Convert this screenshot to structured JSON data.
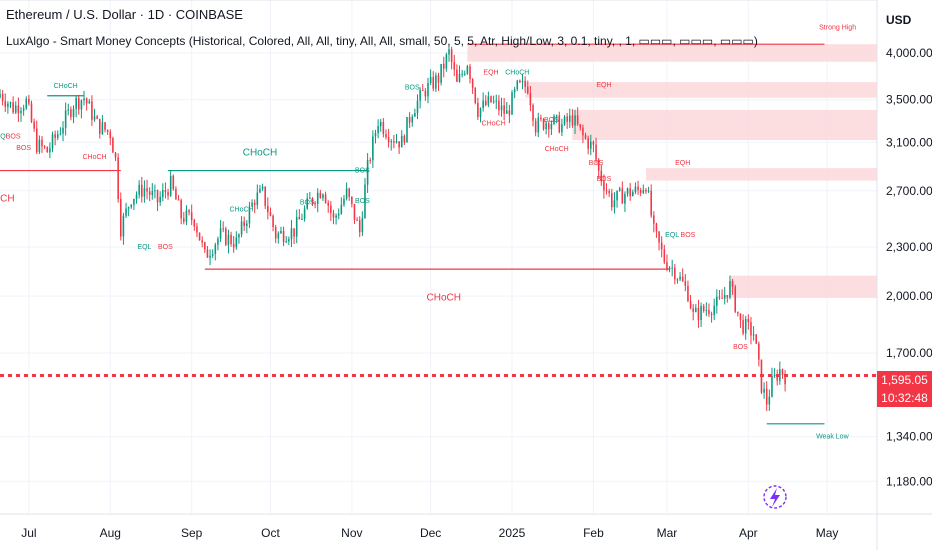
{
  "header": {
    "title": "Ethereum / U.S. Dollar · 1D · COINBASE",
    "indicator": "LuxAlgo - Smart Money Concepts (Historical, Colored, All, All, tiny, All, All, small, 50, 5, 5, Atr, High/Low, 3, 0.1, tiny, , 1, ▭▭▭, ▭▭▭, ▭▭▭)",
    "currency": "USD"
  },
  "price_tag": {
    "price": "1,595.05",
    "countdown": "10:32:48"
  },
  "colors": {
    "bull": "#089981",
    "bear": "#f23645",
    "grid": "#f0f3fa",
    "zone": "#fbd7da",
    "text": "#131722",
    "axis_text": "#131722",
    "logo": "#7b2ff7"
  },
  "chart_data": {
    "type": "candlestick",
    "symbol": "ETH/USD",
    "interval": "1D",
    "exchange": "COINBASE",
    "y_axis": {
      "scale": "log",
      "ticks": [
        1180,
        1340,
        1700,
        2000,
        2300,
        2700,
        3100,
        3500,
        4000
      ],
      "tick_labels": [
        "1,180.00",
        "1,340.00",
        "1,700.00",
        "2,000.00",
        "2,300.00",
        "2,700.00",
        "3,100.00",
        "3,500.00",
        "4,000.00"
      ],
      "range": [
        1075,
        4650
      ]
    },
    "x_axis": {
      "range": [
        "2024-06-20",
        "2025-05-20"
      ],
      "ticks": [
        "2024-07-01",
        "2024-08-01",
        "2024-09-01",
        "2024-10-01",
        "2024-11-01",
        "2024-12-01",
        "2025-01-01",
        "2025-02-01",
        "2025-03-01",
        "2025-04-01",
        "2025-05-01"
      ],
      "tick_labels": [
        "Jul",
        "Aug",
        "Sep",
        "Oct",
        "Nov",
        "Dec",
        "2025",
        "Feb",
        "Mar",
        "Apr",
        "May"
      ]
    },
    "last_price": 1595.05,
    "price_path": [
      [
        "2024-06-20",
        3560
      ],
      [
        "2024-06-25",
        3420
      ],
      [
        "2024-06-30",
        3480
      ],
      [
        "2024-07-04",
        3080
      ],
      [
        "2024-07-08",
        3020
      ],
      [
        "2024-07-13",
        3220
      ],
      [
        "2024-07-18",
        3460
      ],
      [
        "2024-07-22",
        3520
      ],
      [
        "2024-07-27",
        3260
      ],
      [
        "2024-08-01",
        3180
      ],
      [
        "2024-08-03",
        2950
      ],
      [
        "2024-08-05",
        2430
      ],
      [
        "2024-08-09",
        2650
      ],
      [
        "2024-08-14",
        2720
      ],
      [
        "2024-08-19",
        2620
      ],
      [
        "2024-08-24",
        2750
      ],
      [
        "2024-08-28",
        2510
      ],
      [
        "2024-09-02",
        2490
      ],
      [
        "2024-09-06",
        2240
      ],
      [
        "2024-09-12",
        2380
      ],
      [
        "2024-09-18",
        2330
      ],
      [
        "2024-09-25",
        2640
      ],
      [
        "2024-09-28",
        2680
      ],
      [
        "2024-10-03",
        2380
      ],
      [
        "2024-10-10",
        2410
      ],
      [
        "2024-10-16",
        2620
      ],
      [
        "2024-10-21",
        2720
      ],
      [
        "2024-10-25",
        2480
      ],
      [
        "2024-10-30",
        2680
      ],
      [
        "2024-11-04",
        2400
      ],
      [
        "2024-11-07",
        2880
      ],
      [
        "2024-11-11",
        3300
      ],
      [
        "2024-11-16",
        3150
      ],
      [
        "2024-11-20",
        3100
      ],
      [
        "2024-11-24",
        3400
      ],
      [
        "2024-11-29",
        3600
      ],
      [
        "2024-12-04",
        3720
      ],
      [
        "2024-12-08",
        4000
      ],
      [
        "2024-12-11",
        3650
      ],
      [
        "2024-12-15",
        3900
      ],
      [
        "2024-12-19",
        3400
      ],
      [
        "2024-12-24",
        3480
      ],
      [
        "2024-12-30",
        3360
      ],
      [
        "2025-01-03",
        3620
      ],
      [
        "2025-01-07",
        3640
      ],
      [
        "2025-01-10",
        3250
      ],
      [
        "2025-01-15",
        3300
      ],
      [
        "2025-01-20",
        3250
      ],
      [
        "2025-01-24",
        3320
      ],
      [
        "2025-01-28",
        3150
      ],
      [
        "2025-02-01",
        3050
      ],
      [
        "2025-02-03",
        2850
      ],
      [
        "2025-02-08",
        2620
      ],
      [
        "2025-02-13",
        2680
      ],
      [
        "2025-02-18",
        2700
      ],
      [
        "2025-02-21",
        2760
      ],
      [
        "2025-02-24",
        2400
      ],
      [
        "2025-02-28",
        2220
      ],
      [
        "2025-03-04",
        2150
      ],
      [
        "2025-03-09",
        2020
      ],
      [
        "2025-03-11",
        1890
      ],
      [
        "2025-03-16",
        1930
      ],
      [
        "2025-03-21",
        1960
      ],
      [
        "2025-03-25",
        2060
      ],
      [
        "2025-03-29",
        1850
      ],
      [
        "2025-04-03",
        1800
      ],
      [
        "2025-04-06",
        1550
      ],
      [
        "2025-04-08",
        1480
      ],
      [
        "2025-04-10",
        1560
      ],
      [
        "2025-04-13",
        1620
      ],
      [
        "2025-04-15",
        1595
      ]
    ],
    "horizontal_levels": [
      {
        "label": "CHoCH",
        "kind": "bear",
        "y": 2860,
        "from": "2024-06-20",
        "to": "2024-08-05"
      },
      {
        "label": "CHoCH",
        "kind": "bull",
        "y": 2860,
        "from": "2024-08-23",
        "to": "2024-11-07"
      },
      {
        "label": "CHoCH",
        "kind": "bear",
        "y": 2160,
        "from": "2024-09-06",
        "to": "2025-03-02"
      },
      {
        "label": "CHoCH",
        "kind": "bull",
        "y": 3540,
        "from": "2024-07-08",
        "to": "2024-07-22"
      },
      {
        "label": "Strong High",
        "kind": "bear",
        "y": 4100,
        "from": "2024-12-15",
        "to": "2025-04-30"
      },
      {
        "label": "Weak Low",
        "kind": "bull",
        "y": 1390,
        "from": "2025-04-08",
        "to": "2025-04-30"
      }
    ],
    "zones": [
      {
        "from": "2024-12-15",
        "to": "2025-05-20",
        "low": 3900,
        "high": 4100
      },
      {
        "from": "2025-01-06",
        "to": "2025-05-20",
        "low": 3520,
        "high": 3680
      },
      {
        "from": "2025-01-24",
        "to": "2025-05-20",
        "low": 3120,
        "high": 3400
      },
      {
        "from": "2025-02-21",
        "to": "2025-05-20",
        "low": 2780,
        "high": 2880
      },
      {
        "from": "2025-03-25",
        "to": "2025-05-20",
        "low": 1990,
        "high": 2120
      }
    ],
    "labels": [
      {
        "text": "CHoCH",
        "kind": "bear",
        "date": "2024-06-19",
        "y": 2640
      },
      {
        "text": "CHoCH",
        "kind": "bull",
        "date": "2024-07-15",
        "y": 3640
      },
      {
        "text": "EQL",
        "kind": "bull",
        "date": "2024-06-21",
        "y": 3150
      },
      {
        "text": "BOS",
        "kind": "bear",
        "date": "2024-06-25",
        "y": 3150
      },
      {
        "text": "BOS",
        "kind": "bear",
        "date": "2024-06-29",
        "y": 3050
      },
      {
        "text": "CHoCH",
        "kind": "bear",
        "date": "2024-07-26",
        "y": 2970
      },
      {
        "text": "EQL",
        "kind": "bull",
        "date": "2024-08-14",
        "y": 2300
      },
      {
        "text": "BOS",
        "kind": "bear",
        "date": "2024-08-22",
        "y": 2300
      },
      {
        "text": "CHoCH",
        "kind": "bull",
        "date": "2024-09-27",
        "y": 3010
      },
      {
        "text": "CHoCH",
        "kind": "bull",
        "date": "2024-09-20",
        "y": 2560
      },
      {
        "text": "BOS",
        "kind": "bull",
        "date": "2024-10-15",
        "y": 2610
      },
      {
        "text": "BOS",
        "kind": "bull",
        "date": "2024-11-05",
        "y": 2620
      },
      {
        "text": "BOS",
        "kind": "bull",
        "date": "2024-11-05",
        "y": 2860
      },
      {
        "text": "BOS",
        "kind": "bull",
        "date": "2024-11-24",
        "y": 3620
      },
      {
        "text": "CHoCH",
        "kind": "bear",
        "date": "2024-12-06",
        "y": 1990
      },
      {
        "text": "EQH",
        "kind": "bear",
        "date": "2024-12-24",
        "y": 3780
      },
      {
        "text": "CHoCH",
        "kind": "bull",
        "date": "2025-01-03",
        "y": 3780
      },
      {
        "text": "CHoCH",
        "kind": "bear",
        "date": "2024-12-25",
        "y": 3270
      },
      {
        "text": "BOS",
        "kind": "bear",
        "date": "2025-01-16",
        "y": 3300
      },
      {
        "text": "CHoCH",
        "kind": "bear",
        "date": "2025-01-18",
        "y": 3040
      },
      {
        "text": "EQH",
        "kind": "bear",
        "date": "2025-02-05",
        "y": 3650
      },
      {
        "text": "BOS",
        "kind": "bear",
        "date": "2025-02-02",
        "y": 2920
      },
      {
        "text": "BOS",
        "kind": "bear",
        "date": "2025-02-05",
        "y": 2790
      },
      {
        "text": "EQH",
        "kind": "bear",
        "date": "2025-03-07",
        "y": 2920
      },
      {
        "text": "EQL",
        "kind": "bull",
        "date": "2025-03-03",
        "y": 2380
      },
      {
        "text": "BOS",
        "kind": "bear",
        "date": "2025-03-09",
        "y": 2380
      },
      {
        "text": "BOS",
        "kind": "bear",
        "date": "2025-03-29",
        "y": 1730
      },
      {
        "text": "Strong High",
        "kind": "bear",
        "date": "2025-05-05",
        "y": 4300
      },
      {
        "text": "Weak Low",
        "kind": "bull",
        "date": "2025-05-03",
        "y": 1340
      }
    ]
  }
}
